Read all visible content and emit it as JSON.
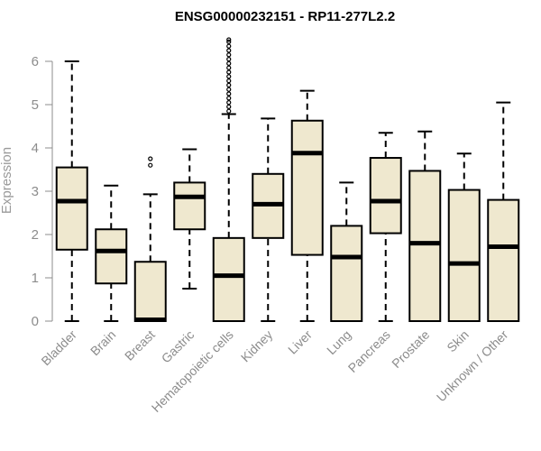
{
  "chart_data": {
    "type": "boxplot",
    "title": "ENSG00000232151 - RP11-277L2.2",
    "ylabel": "Expression",
    "xlabel": "",
    "ylim": [
      0,
      6.5
    ],
    "yticks": [
      0,
      1,
      2,
      3,
      4,
      5,
      6
    ],
    "categories": [
      "Bladder",
      "Brain",
      "Breast",
      "Gastric",
      "Hematopoietic cells",
      "Kidney",
      "Liver",
      "Lung",
      "Pancreas",
      "Prostate",
      "Skin",
      "Unknown / Other"
    ],
    "boxes": [
      {
        "min": 0.0,
        "q1": 1.65,
        "median": 2.77,
        "q3": 3.55,
        "max": 6.0,
        "outliers": []
      },
      {
        "min": 0.0,
        "q1": 0.87,
        "median": 1.62,
        "q3": 2.12,
        "max": 3.13,
        "outliers": []
      },
      {
        "min": 0.0,
        "q1": 0.0,
        "median": 0.03,
        "q3": 1.37,
        "max": 2.93,
        "outliers": [
          3.6,
          3.75
        ]
      },
      {
        "min": 0.75,
        "q1": 2.12,
        "median": 2.87,
        "q3": 3.2,
        "max": 3.97,
        "outliers": []
      },
      {
        "min": 0.0,
        "q1": 0.0,
        "median": 1.05,
        "q3": 1.92,
        "max": 4.78,
        "outliers": [
          4.85,
          4.95,
          5.05,
          5.15,
          5.25,
          5.35,
          5.45,
          5.55,
          5.65,
          5.75,
          5.85,
          5.95,
          6.05,
          6.15,
          6.25,
          6.35,
          6.45,
          6.5
        ]
      },
      {
        "min": 0.0,
        "q1": 1.92,
        "median": 2.7,
        "q3": 3.4,
        "max": 4.68,
        "outliers": []
      },
      {
        "min": 0.0,
        "q1": 1.53,
        "median": 3.88,
        "q3": 4.63,
        "max": 5.32,
        "outliers": []
      },
      {
        "min": 0.0,
        "q1": 0.0,
        "median": 1.48,
        "q3": 2.2,
        "max": 3.2,
        "outliers": []
      },
      {
        "min": 0.0,
        "q1": 2.03,
        "median": 2.77,
        "q3": 3.77,
        "max": 4.35,
        "outliers": []
      },
      {
        "min": 0.0,
        "q1": 0.0,
        "median": 1.8,
        "q3": 3.47,
        "max": 4.38,
        "outliers": []
      },
      {
        "min": 0.0,
        "q1": 0.0,
        "median": 1.33,
        "q3": 3.03,
        "max": 3.87,
        "outliers": []
      },
      {
        "min": 0.0,
        "q1": 0.0,
        "median": 1.72,
        "q3": 2.8,
        "max": 5.05,
        "outliers": []
      }
    ],
    "colors": {
      "box_fill": "#efe8cf",
      "stroke": "#000000",
      "axis": "#8c8c8c"
    },
    "grid": false,
    "legend": "none"
  }
}
